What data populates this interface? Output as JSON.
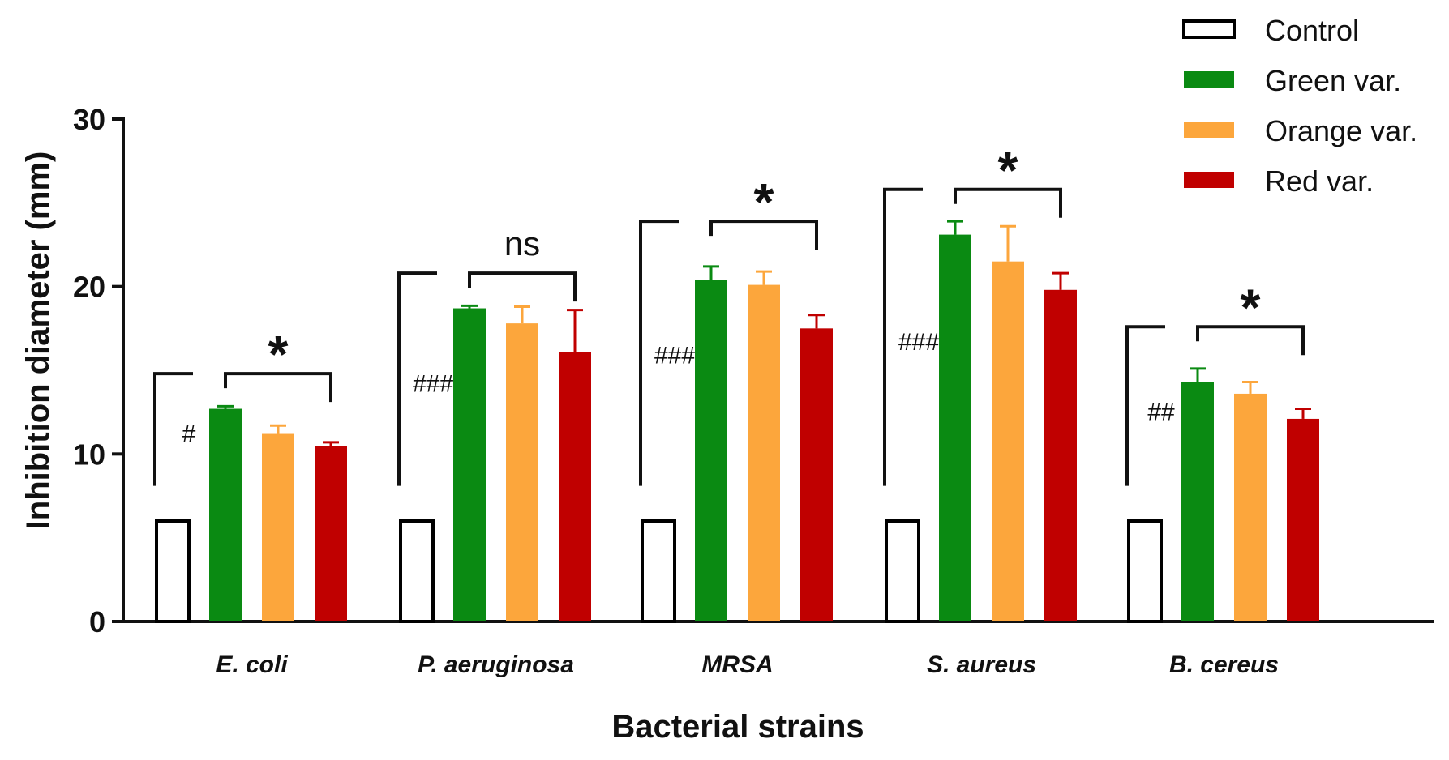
{
  "chart_data": {
    "type": "bar",
    "xlabel": "Bacterial strains",
    "ylabel": "Inhibition diameter (mm)",
    "ylim": [
      0,
      30
    ],
    "yticks": [
      0,
      10,
      20,
      30
    ],
    "categories": [
      "E. coli",
      "P. aeruginosa",
      "MRSA",
      "S. aureus",
      "B. cereus"
    ],
    "series": [
      {
        "name": "Control",
        "color": "#ffffff",
        "stroke": "#000000",
        "values": [
          6,
          6,
          6,
          6,
          6
        ],
        "errors": [
          0,
          0,
          0,
          0,
          0
        ]
      },
      {
        "name": "Green var.",
        "color": "#0a8a12",
        "values": [
          12.7,
          18.7,
          20.4,
          23.1,
          14.3
        ],
        "errors": [
          0.15,
          0.15,
          0.8,
          0.8,
          0.8
        ]
      },
      {
        "name": "Orange var.",
        "color": "#fca63c",
        "values": [
          11.2,
          17.8,
          20.1,
          21.5,
          13.6
        ],
        "errors": [
          0.5,
          1.0,
          0.8,
          2.1,
          0.7
        ]
      },
      {
        "name": "Red var.",
        "color": "#c00000",
        "values": [
          10.5,
          16.1,
          17.5,
          19.8,
          12.1
        ],
        "errors": [
          0.2,
          2.5,
          0.8,
          1.0,
          0.6
        ]
      }
    ],
    "legend": {
      "placement": "top-right"
    },
    "grid": false,
    "annotations": [
      {
        "category": 0,
        "hash_label": "#",
        "bracket_label": "*",
        "hash_y": 11.2,
        "top_y": 14.8,
        "bracket_y": 14.8
      },
      {
        "category": 1,
        "hash_label": "###",
        "bracket_label": "ns",
        "hash_y": 14.2,
        "top_y": 20.8,
        "bracket_y": 20.8
      },
      {
        "category": 2,
        "hash_label": "###",
        "bracket_label": "*",
        "hash_y": 15.9,
        "top_y": 23.9,
        "bracket_y": 23.9
      },
      {
        "category": 3,
        "hash_label": "###",
        "bracket_label": "*",
        "hash_y": 16.7,
        "top_y": 25.8,
        "bracket_y": 25.8
      },
      {
        "category": 4,
        "hash_label": "##",
        "bracket_label": "*",
        "hash_y": 12.5,
        "top_y": 17.6,
        "bracket_y": 17.6
      }
    ]
  }
}
